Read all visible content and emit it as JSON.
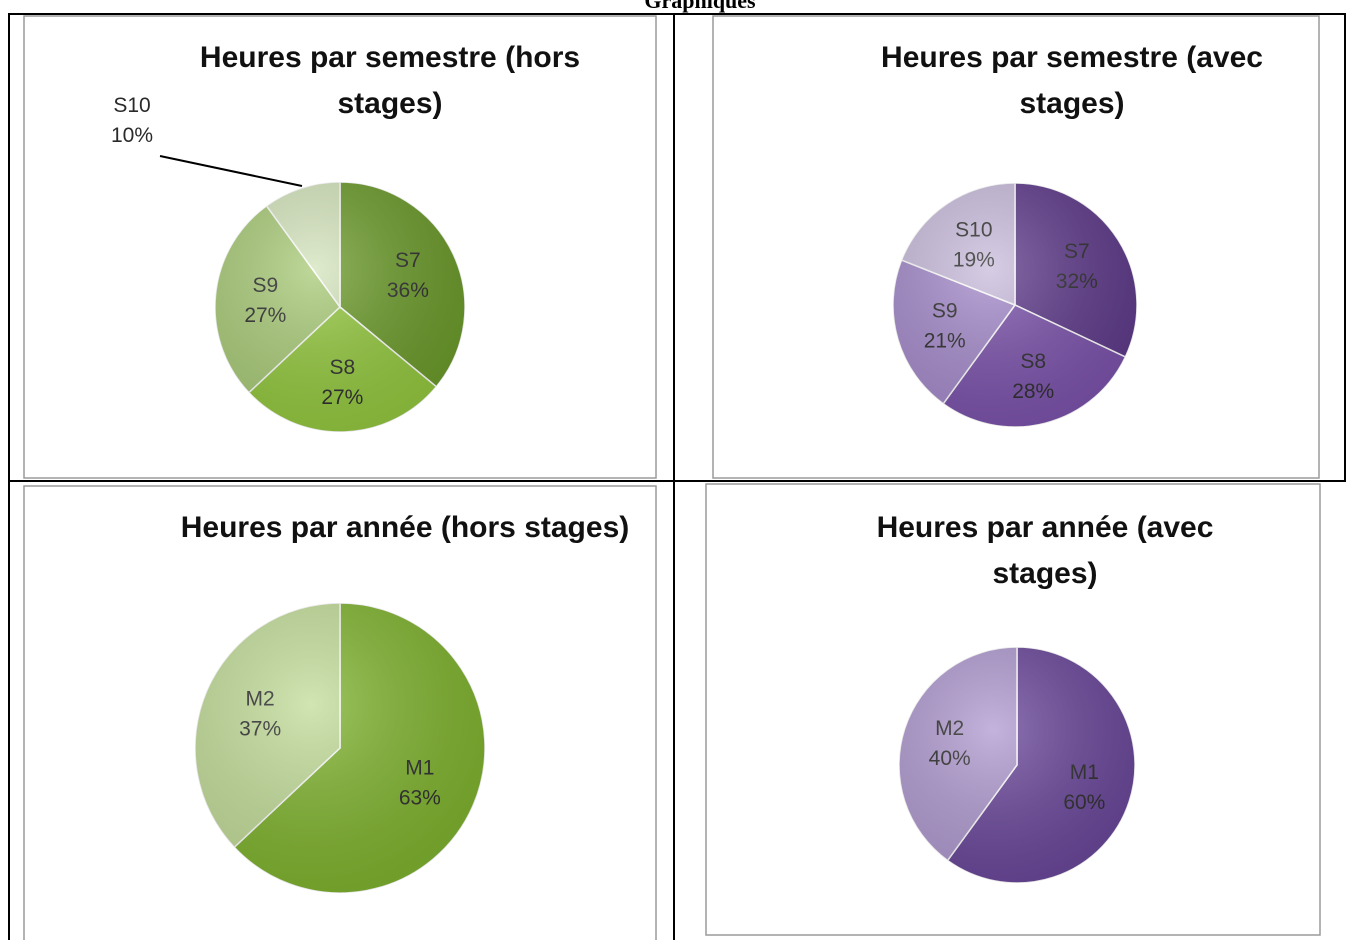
{
  "heading": "Graphiques",
  "chart_data": [
    {
      "type": "pie",
      "title": "Heures par semestre (hors stages)",
      "categories": [
        "S7",
        "S8",
        "S9",
        "S10"
      ],
      "values": [
        36,
        27,
        27,
        10
      ],
      "value_labels": [
        "36%",
        "27%",
        "27%",
        "10%"
      ],
      "colors": [
        "#6b9a2a",
        "#93c83e",
        "#a9cb78",
        "#d4e4bc"
      ]
    },
    {
      "type": "pie",
      "title": "Heures par semestre (avec stages)",
      "categories": [
        "S7",
        "S8",
        "S9",
        "S10"
      ],
      "values": [
        32,
        28,
        21,
        19
      ],
      "value_labels": [
        "32%",
        "28%",
        "21%",
        "19%"
      ],
      "colors": [
        "#5e3a8a",
        "#7b52ab",
        "#a58bcb",
        "#c9bcdc"
      ]
    },
    {
      "type": "pie",
      "title": "Heures par année (hors stages)",
      "categories": [
        "M1",
        "M2"
      ],
      "values": [
        63,
        37
      ],
      "value_labels": [
        "63%",
        "37%"
      ],
      "colors": [
        "#7fb32e",
        "#c2dc99"
      ]
    },
    {
      "type": "pie",
      "title": "Heures par année (avec stages)",
      "categories": [
        "M1",
        "M2"
      ],
      "values": [
        60,
        40
      ],
      "value_labels": [
        "60%",
        "40%"
      ],
      "colors": [
        "#6a479a",
        "#b09ad0"
      ]
    }
  ]
}
